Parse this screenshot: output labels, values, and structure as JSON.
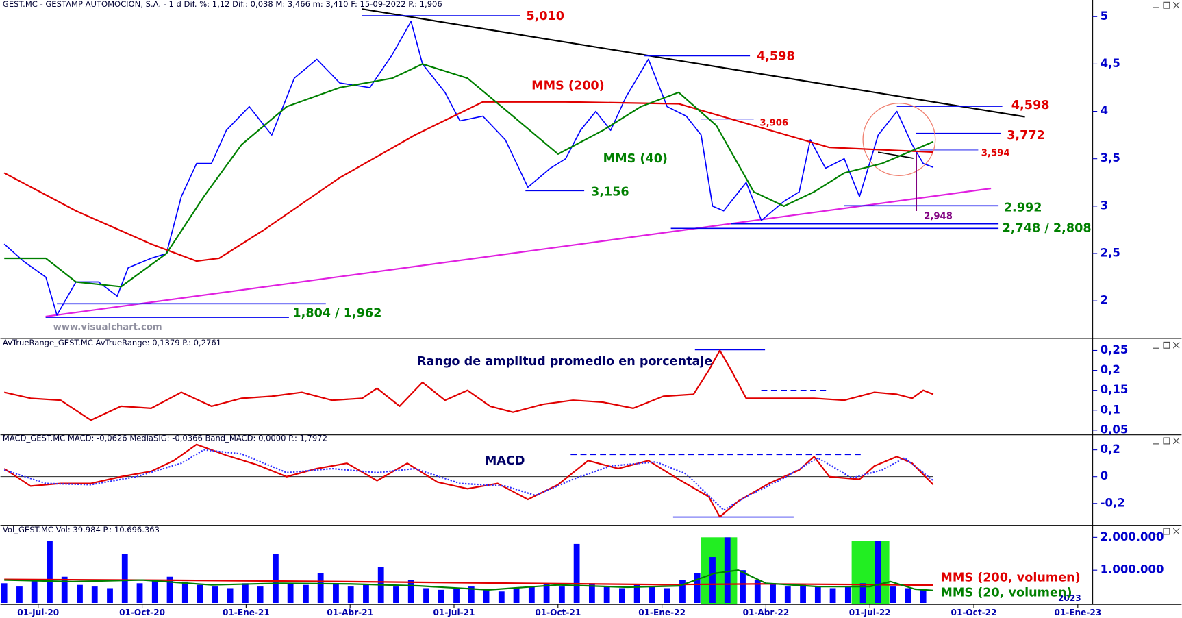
{
  "chart_data": [
    {
      "type": "line",
      "title": "GEST.MC - GESTAMP AUTOMOCION, S.A. -  1 d  Dif. %: 1,12  Dif.: 0,038  M: 3,466  m: 3,410  F: 15-09-2022  P.: 1,906",
      "annotations": [
        "5,010",
        "4,598",
        "4,598",
        "3,772",
        "3,594",
        "3,906",
        "3,156",
        "2.992",
        "2,948",
        "2,748 /  2,808",
        "1,804 / 1,962",
        "www.visualchart.com"
      ],
      "xlim": [
        -1.09,
        30.43
      ],
      "ylim": [
        1.62,
        5.08
      ],
      "yticks": [
        2,
        {
          "value": 2.5,
          "label": "2,5"
        },
        3,
        {
          "value": 3.5,
          "label": "3,5"
        },
        4,
        {
          "value": 4.5,
          "label": "4,5"
        },
        5
      ],
      "series": [
        {
          "color": "#0000ff",
          "x": [
            -0.98,
            -0.43,
            0.22,
            0.54,
            1.09,
            1.74,
            2.28,
            2.6,
            3.26,
            3.7,
            4.13,
            4.57,
            5.0,
            5.43,
            6.09,
            6.74,
            7.39,
            8.04,
            8.7,
            9.57,
            10.22,
            10.76,
            11.09,
            11.74,
            12.17,
            12.83,
            13.48,
            14.13,
            14.78,
            15.22,
            15.65,
            16.09,
            16.52,
            16.96,
            17.61,
            18.15,
            18.7,
            19.13,
            19.46,
            19.78,
            20.43,
            20.87,
            21.52,
            21.96,
            22.28,
            22.72,
            23.26,
            23.7,
            24.24,
            24.78,
            25.22,
            25.54,
            25.83
          ],
          "values": [
            2.6,
            2.42,
            2.25,
            1.85,
            2.2,
            2.2,
            2.05,
            2.35,
            2.45,
            2.5,
            3.1,
            3.45,
            3.45,
            3.8,
            4.05,
            3.75,
            4.35,
            4.55,
            4.3,
            4.25,
            4.6,
            4.95,
            4.5,
            4.2,
            3.9,
            3.95,
            3.7,
            3.2,
            3.4,
            3.5,
            3.8,
            4.0,
            3.8,
            4.15,
            4.55,
            4.05,
            3.95,
            3.75,
            3.0,
            2.95,
            3.25,
            2.85,
            3.05,
            3.15,
            3.7,
            3.4,
            3.5,
            3.1,
            3.75,
            4.0,
            3.65,
            3.45,
            3.41
          ]
        },
        {
          "name": "MMS (200)",
          "color": "#e00000",
          "x": [
            -0.98,
            1.09,
            3.26,
            4.57,
            5.22,
            6.52,
            8.7,
            10.87,
            12.83,
            15.22,
            18.48,
            20.65,
            22.83,
            25.83
          ],
          "values": [
            3.35,
            2.95,
            2.6,
            2.42,
            2.45,
            2.75,
            3.3,
            3.75,
            4.1,
            4.1,
            4.08,
            3.85,
            3.62,
            3.57
          ]
        },
        {
          "name": "MMS (40)",
          "color": "#008000",
          "x": [
            -0.98,
            0.22,
            1.09,
            2.39,
            3.7,
            4.78,
            5.87,
            7.17,
            8.7,
            10.22,
            11.09,
            12.39,
            13.7,
            15.0,
            16.3,
            17.39,
            18.48,
            19.57,
            20.65,
            21.52,
            22.39,
            23.26,
            24.35,
            25.83
          ],
          "values": [
            2.45,
            2.45,
            2.2,
            2.15,
            2.5,
            3.1,
            3.65,
            4.05,
            4.25,
            4.35,
            4.5,
            4.35,
            3.95,
            3.55,
            3.8,
            4.05,
            4.2,
            3.85,
            3.15,
            3.0,
            3.15,
            3.35,
            3.45,
            3.68
          ]
        }
      ]
    },
    {
      "type": "line",
      "title": "AvTrueRange_GEST.MC  AvTrueRange: 0,1379  P.: 0,2761",
      "annotations": [
        "Rango de amplitud promedio en porcentaje"
      ],
      "xlim": [
        -1.09,
        30.43
      ],
      "ylim": [
        0.042,
        0.267
      ],
      "yticks": [
        {
          "value": 0.05,
          "label": "0,05"
        },
        {
          "value": 0.1,
          "label": "0,1"
        },
        {
          "value": 0.15,
          "label": "0,15"
        },
        {
          "value": 0.2,
          "label": "0,2"
        },
        {
          "value": 0.25,
          "label": "0,25"
        }
      ],
      "series": [
        {
          "color": "#e00000",
          "x": [
            -0.98,
            -0.22,
            0.65,
            1.52,
            2.39,
            3.26,
            4.13,
            5.0,
            5.87,
            6.74,
            7.61,
            8.48,
            9.35,
            9.78,
            10.43,
            11.09,
            11.74,
            12.39,
            13.04,
            13.7,
            14.57,
            15.43,
            16.3,
            17.17,
            18.04,
            18.91,
            19.35,
            19.67,
            20.0,
            20.43,
            21.52,
            22.39,
            23.26,
            24.13,
            24.78,
            25.22,
            25.54,
            25.83
          ],
          "values": [
            0.145,
            0.13,
            0.125,
            0.075,
            0.11,
            0.105,
            0.145,
            0.11,
            0.13,
            0.135,
            0.145,
            0.125,
            0.13,
            0.155,
            0.11,
            0.17,
            0.125,
            0.15,
            0.11,
            0.095,
            0.115,
            0.125,
            0.12,
            0.105,
            0.135,
            0.14,
            0.2,
            0.25,
            0.2,
            0.13,
            0.13,
            0.13,
            0.125,
            0.145,
            0.14,
            0.13,
            0.15,
            0.14
          ]
        }
      ]
    },
    {
      "type": "line",
      "title": "MACD_GEST.MC  MACD: -0,0626  MediaSIG: -0,0366  Band_MACD: 0,0000  P.: 1,7972",
      "annotations": [
        "MACD"
      ],
      "xlim": [
        -1.09,
        30.43
      ],
      "ylim": [
        -0.352,
        0.256
      ],
      "yticks": [
        {
          "value": -0.2,
          "label": "-0,2"
        },
        0,
        {
          "value": 0.2,
          "label": "0,2"
        }
      ],
      "series": [
        {
          "color": "#e00000",
          "x": [
            -0.98,
            -0.22,
            0.65,
            1.52,
            2.39,
            3.26,
            3.91,
            4.57,
            5.43,
            6.3,
            7.17,
            8.04,
            8.91,
            9.78,
            10.65,
            11.52,
            12.39,
            13.26,
            14.13,
            15.0,
            15.87,
            16.74,
            17.61,
            18.48,
            19.35,
            19.67,
            20.22,
            21.09,
            21.96,
            22.39,
            22.83,
            23.7,
            24.13,
            24.78,
            25.22,
            25.83
          ],
          "values": [
            0.06,
            -0.07,
            -0.05,
            -0.05,
            0.0,
            0.04,
            0.12,
            0.24,
            0.16,
            0.09,
            0.0,
            0.06,
            0.1,
            -0.03,
            0.1,
            -0.04,
            -0.09,
            -0.05,
            -0.17,
            -0.06,
            0.12,
            0.06,
            0.12,
            -0.02,
            -0.15,
            -0.3,
            -0.18,
            -0.05,
            0.05,
            0.15,
            0.0,
            -0.02,
            0.08,
            0.15,
            0.1,
            -0.06
          ]
        },
        {
          "color": "#3030ff",
          "x": [
            -0.98,
            0.22,
            1.52,
            2.83,
            4.13,
            4.78,
            5.87,
            7.17,
            8.48,
            9.78,
            10.87,
            12.17,
            13.48,
            14.35,
            15.43,
            16.52,
            17.83,
            18.7,
            19.78,
            20.43,
            21.52,
            22.5,
            23.48,
            24.35,
            25.0,
            25.83
          ],
          "values": [
            0.05,
            -0.05,
            -0.06,
            0.0,
            0.1,
            0.2,
            0.17,
            0.03,
            0.06,
            0.03,
            0.06,
            -0.05,
            -0.07,
            -0.14,
            -0.02,
            0.08,
            0.11,
            0.02,
            -0.25,
            -0.15,
            -0.01,
            0.14,
            -0.01,
            0.05,
            0.14,
            -0.03
          ]
        }
      ]
    },
    {
      "type": "bar",
      "title": "Vol_GEST.MC  Vol: 39.984  P.: 10.696.363",
      "xlim": [
        -1.09,
        30.43
      ],
      "ylim": [
        0,
        2300000
      ],
      "yticks": [
        {
          "value": 1000000,
          "label": "1.000.000"
        },
        {
          "value": 2000000,
          "label": "2.000.000"
        }
      ],
      "xticks": [
        {
          "value": 0,
          "label": "01-Jul-20"
        },
        {
          "value": 3,
          "label": "01-Oct-20"
        },
        {
          "value": 6,
          "label": "01-Ene-21"
        },
        {
          "value": 9,
          "label": "01-Abr-21"
        },
        {
          "value": 12,
          "label": "01-Jul-21"
        },
        {
          "value": 15,
          "label": "01-Oct-21"
        },
        {
          "value": 18,
          "label": "01-Ene-22"
        },
        {
          "value": 21,
          "label": "01-Abr-22"
        },
        {
          "value": 24,
          "label": "01-Jul-22"
        },
        {
          "value": 27,
          "label": "01-Oct-22"
        },
        {
          "value": 30,
          "label": "01-Ene-23"
        }
      ],
      "year_label": "2023",
      "series": [
        {
          "color": "#0000ff",
          "x": [
            -0.98,
            -0.54,
            -0.11,
            0.33,
            0.76,
            1.2,
            1.63,
            2.07,
            2.5,
            2.93,
            3.37,
            3.8,
            4.24,
            4.67,
            5.11,
            5.54,
            5.98,
            6.41,
            6.85,
            7.28,
            7.72,
            8.15,
            8.59,
            9.02,
            9.46,
            9.89,
            10.33,
            10.76,
            11.2,
            11.63,
            12.07,
            12.5,
            12.93,
            13.37,
            13.8,
            14.24,
            14.67,
            15.11,
            15.54,
            15.98,
            16.41,
            16.85,
            17.28,
            17.72,
            18.15,
            18.59,
            19.02,
            19.46,
            19.89,
            20.33,
            20.76,
            21.2,
            21.63,
            22.07,
            22.5,
            22.93,
            23.37,
            23.8,
            24.24,
            24.67,
            25.11,
            25.54
          ],
          "values": [
            600000,
            500000,
            700000,
            1900000,
            800000,
            550000,
            500000,
            450000,
            1500000,
            600000,
            700000,
            800000,
            650000,
            550000,
            500000,
            450000,
            600000,
            500000,
            1500000,
            600000,
            550000,
            900000,
            600000,
            500000,
            550000,
            1100000,
            500000,
            700000,
            450000,
            400000,
            450000,
            500000,
            400000,
            350000,
            450000,
            500000,
            600000,
            500000,
            1800000,
            600000,
            500000,
            450000,
            550000,
            500000,
            450000,
            700000,
            900000,
            1400000,
            2000000,
            1000000,
            700000,
            600000,
            500000,
            550000,
            500000,
            450000,
            500000,
            600000,
            1900000,
            500000,
            450000,
            400000
          ]
        },
        {
          "type": "line",
          "name": "MMS (200, volumen)",
          "color": "#e00000",
          "x": [
            -0.98,
            3.0,
            8.0,
            13.0,
            18.0,
            21.0,
            24.0,
            25.83
          ],
          "values": [
            720000,
            700000,
            660000,
            610000,
            560000,
            580000,
            560000,
            540000
          ]
        },
        {
          "type": "line",
          "name": "MMS (20, volumen)",
          "color": "#008000",
          "x": [
            -0.98,
            1.0,
            3.0,
            5.0,
            7.0,
            9.0,
            11.0,
            13.0,
            15.0,
            17.0,
            18.5,
            19.5,
            20.2,
            21.0,
            22.5,
            24.0,
            24.6,
            25.3,
            25.83
          ],
          "values": [
            700000,
            650000,
            700000,
            550000,
            600000,
            580000,
            520000,
            400000,
            550000,
            480000,
            520000,
            900000,
            1000000,
            600000,
            500000,
            500000,
            650000,
            420000,
            380000
          ]
        }
      ]
    }
  ]
}
